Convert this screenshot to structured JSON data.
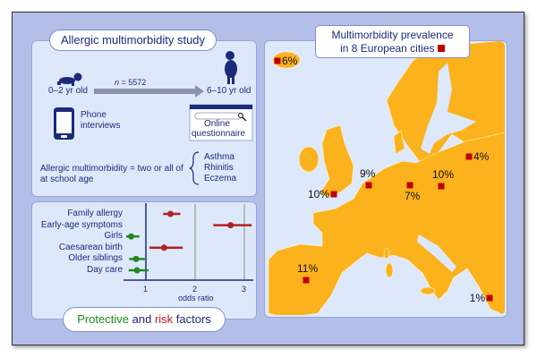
{
  "study": {
    "title": "Allergic multimorbidity study",
    "start_age": "0–2 yr old",
    "n_label": "n",
    "n_value": "= 5572",
    "end_age": "6–10 yr old",
    "phone_label_1": "Phone",
    "phone_label_2": "interviews",
    "online_label_1": "Online",
    "online_label_2": "questionnaire",
    "definition_1": "Allergic multimorbidity = two or all of",
    "definition_2": "at school age",
    "conditions": [
      "Asthma",
      "Rhinitis",
      "Eczema"
    ]
  },
  "factors": {
    "title_protective": "Protective",
    "title_and": "and",
    "title_risk": "risk",
    "title_factors": "factors",
    "colors": {
      "protective": "#1e8a1e",
      "risk": "#b22222"
    }
  },
  "chart_data": {
    "type": "forest",
    "xlabel": "odds ratio",
    "xticks": [
      "1",
      "2",
      "3"
    ],
    "xlim": [
      0.55,
      3.2
    ],
    "reference_line": 1,
    "rows": [
      {
        "label": "Family allergy",
        "or": 1.5,
        "ci": [
          1.35,
          1.7
        ],
        "type": "risk"
      },
      {
        "label": "Early-age symptoms",
        "or": 2.72,
        "ci": [
          2.37,
          3.15
        ],
        "type": "risk"
      },
      {
        "label": "Girls",
        "or": 0.7,
        "ci": [
          0.6,
          0.87
        ],
        "type": "protective"
      },
      {
        "label": "Caesarean birth",
        "or": 1.37,
        "ci": [
          1.07,
          1.75
        ],
        "type": "risk"
      },
      {
        "label": "Older siblings",
        "or": 0.8,
        "ci": [
          0.66,
          0.98
        ],
        "type": "protective"
      },
      {
        "label": "Day care",
        "or": 0.82,
        "ci": [
          0.65,
          1.05
        ],
        "type": "protective"
      }
    ]
  },
  "map": {
    "title_1": "Multimorbidity prevalence",
    "title_2": "in 8 European cities",
    "land_color": "#fbb21c",
    "sea_color": "#dde9fb",
    "marker_color": "#c00000",
    "cities": [
      {
        "label": "6%"
      },
      {
        "label": "10%"
      },
      {
        "label": "9%"
      },
      {
        "label": "7%"
      },
      {
        "label": "10%"
      },
      {
        "label": "4%"
      },
      {
        "label": "11%"
      },
      {
        "label": "1%"
      }
    ]
  }
}
